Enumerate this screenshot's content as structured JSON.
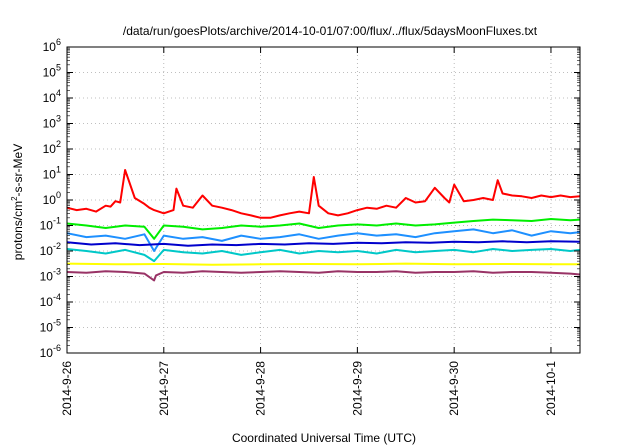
{
  "chart_data": {
    "type": "line",
    "title": "/data/run/goesPlots/archive/2014-10-01/07:00/flux/../flux/5daysMoonFluxes.txt",
    "xlabel": "Coordinated Universal Time (UTC)",
    "ylabel": {
      "prefix": "protons/cm",
      "sup": "2",
      "suffix": "-s-sr-MeV"
    },
    "y_scale": "log",
    "ylim_exponents": [
      -6,
      6
    ],
    "y_ticks": [
      {
        "base": "10",
        "exp": "-6"
      },
      {
        "base": "10",
        "exp": "-5"
      },
      {
        "base": "10",
        "exp": "-4"
      },
      {
        "base": "10",
        "exp": "-3"
      },
      {
        "base": "10",
        "exp": "-2"
      },
      {
        "base": "10",
        "exp": "-1"
      },
      {
        "base": "10",
        "exp": "0"
      },
      {
        "base": "10",
        "exp": "1"
      },
      {
        "base": "10",
        "exp": "2"
      },
      {
        "base": "10",
        "exp": "3"
      },
      {
        "base": "10",
        "exp": "4"
      },
      {
        "base": "10",
        "exp": "5"
      },
      {
        "base": "10",
        "exp": "6"
      }
    ],
    "x_ticks": [
      "2014-9-26",
      "2014-9-27",
      "2014-9-28",
      "2014-9-29",
      "2014-9-30",
      "2014-10-1"
    ],
    "xlim_days": [
      0,
      5.3
    ],
    "grid": true,
    "legend": "none",
    "series": [
      {
        "color": "#ff0000",
        "x": [
          0,
          0.1,
          0.2,
          0.3,
          0.4,
          0.45,
          0.5,
          0.55,
          0.6,
          0.7,
          0.8,
          0.85,
          0.9,
          1.0,
          1.1,
          1.13,
          1.2,
          1.3,
          1.4,
          1.5,
          1.6,
          1.7,
          1.8,
          1.9,
          2.0,
          2.1,
          2.2,
          2.3,
          2.4,
          2.5,
          2.55,
          2.6,
          2.7,
          2.8,
          2.9,
          3.0,
          3.1,
          3.2,
          3.3,
          3.4,
          3.5,
          3.6,
          3.7,
          3.8,
          3.9,
          3.95,
          4.0,
          4.1,
          4.2,
          4.3,
          4.4,
          4.45,
          4.5,
          4.6,
          4.7,
          4.8,
          4.9,
          5.0,
          5.1,
          5.2,
          5.3
        ],
        "y": [
          0.5,
          0.4,
          0.45,
          0.35,
          0.6,
          0.55,
          0.9,
          0.8,
          15,
          1.2,
          0.7,
          0.5,
          0.4,
          0.3,
          0.4,
          2.8,
          0.6,
          0.5,
          1.5,
          0.6,
          0.5,
          0.4,
          0.3,
          0.25,
          0.2,
          0.2,
          0.25,
          0.3,
          0.35,
          0.3,
          8,
          0.6,
          0.3,
          0.25,
          0.3,
          0.4,
          0.5,
          0.45,
          0.6,
          0.5,
          1.2,
          0.8,
          0.9,
          3,
          1.2,
          0.8,
          4,
          0.9,
          1.0,
          1.2,
          1.0,
          6,
          1.8,
          1.5,
          1.4,
          1.2,
          1.5,
          1.3,
          1.5,
          1.3,
          1.4
        ]
      },
      {
        "color": "#00ee00",
        "x": [
          0,
          0.2,
          0.4,
          0.6,
          0.8,
          0.9,
          1.0,
          1.2,
          1.4,
          1.6,
          1.8,
          2.0,
          2.2,
          2.4,
          2.6,
          2.8,
          3.0,
          3.2,
          3.4,
          3.6,
          3.8,
          4.0,
          4.2,
          4.4,
          4.6,
          4.8,
          5.0,
          5.2,
          5.3
        ],
        "y": [
          0.12,
          0.1,
          0.08,
          0.1,
          0.09,
          0.03,
          0.1,
          0.09,
          0.07,
          0.08,
          0.1,
          0.09,
          0.1,
          0.12,
          0.08,
          0.1,
          0.11,
          0.1,
          0.12,
          0.1,
          0.11,
          0.13,
          0.15,
          0.17,
          0.16,
          0.15,
          0.18,
          0.16,
          0.17
        ]
      },
      {
        "color": "#1e90ff",
        "x": [
          0,
          0.2,
          0.4,
          0.6,
          0.8,
          0.9,
          1.0,
          1.2,
          1.4,
          1.6,
          1.8,
          2.0,
          2.2,
          2.4,
          2.6,
          2.8,
          3.0,
          3.2,
          3.4,
          3.6,
          3.8,
          4.0,
          4.2,
          4.4,
          4.6,
          4.8,
          5.0,
          5.2,
          5.3
        ],
        "y": [
          0.05,
          0.035,
          0.04,
          0.03,
          0.045,
          0.01,
          0.04,
          0.03,
          0.035,
          0.025,
          0.04,
          0.03,
          0.035,
          0.045,
          0.03,
          0.04,
          0.05,
          0.04,
          0.045,
          0.035,
          0.05,
          0.06,
          0.07,
          0.05,
          0.065,
          0.04,
          0.06,
          0.05,
          0.055
        ]
      },
      {
        "color": "#0000cc",
        "x": [
          0,
          0.25,
          0.5,
          0.75,
          1.0,
          1.25,
          1.5,
          1.75,
          2.0,
          2.25,
          2.5,
          2.75,
          3.0,
          3.25,
          3.5,
          3.75,
          4.0,
          4.25,
          4.5,
          4.75,
          5.0,
          5.3
        ],
        "y": [
          0.022,
          0.018,
          0.02,
          0.017,
          0.019,
          0.016,
          0.018,
          0.017,
          0.019,
          0.018,
          0.02,
          0.019,
          0.021,
          0.02,
          0.022,
          0.021,
          0.023,
          0.022,
          0.024,
          0.022,
          0.024,
          0.023
        ]
      },
      {
        "color": "#00c8c8",
        "x": [
          0,
          0.2,
          0.4,
          0.6,
          0.8,
          0.9,
          1.0,
          1.2,
          1.4,
          1.6,
          1.8,
          2.0,
          2.2,
          2.4,
          2.6,
          2.8,
          3.0,
          3.2,
          3.4,
          3.6,
          3.8,
          4.0,
          4.2,
          4.4,
          4.6,
          4.8,
          5.0,
          5.2,
          5.3
        ],
        "y": [
          0.012,
          0.01,
          0.008,
          0.011,
          0.007,
          0.004,
          0.011,
          0.009,
          0.008,
          0.01,
          0.007,
          0.009,
          0.011,
          0.008,
          0.01,
          0.009,
          0.01,
          0.008,
          0.011,
          0.009,
          0.01,
          0.011,
          0.009,
          0.012,
          0.01,
          0.011,
          0.012,
          0.01,
          0.011
        ]
      },
      {
        "color": "#ffff00",
        "x": [
          0,
          0.5,
          1.0,
          1.5,
          2.0,
          2.5,
          3.0,
          3.5,
          4.0,
          4.5,
          5.0,
          5.3
        ],
        "y": [
          0.0032,
          0.003,
          0.0031,
          0.0029,
          0.003,
          0.0031,
          0.003,
          0.0032,
          0.003,
          0.0031,
          0.003,
          0.003
        ]
      },
      {
        "color": "#993366",
        "x": [
          0,
          0.2,
          0.4,
          0.6,
          0.8,
          0.9,
          0.92,
          1.0,
          1.2,
          1.4,
          1.6,
          1.8,
          2.0,
          2.2,
          2.4,
          2.6,
          2.8,
          3.0,
          3.2,
          3.4,
          3.6,
          3.8,
          4.0,
          4.2,
          4.4,
          4.6,
          4.8,
          5.0,
          5.2,
          5.3
        ],
        "y": [
          0.0015,
          0.0014,
          0.0016,
          0.0015,
          0.0013,
          0.0007,
          0.0011,
          0.0015,
          0.0014,
          0.0016,
          0.0015,
          0.0014,
          0.0015,
          0.0016,
          0.0015,
          0.0014,
          0.0016,
          0.0015,
          0.0015,
          0.0016,
          0.0014,
          0.0015,
          0.0015,
          0.0016,
          0.0014,
          0.0015,
          0.0015,
          0.0014,
          0.0013,
          0.0012
        ]
      }
    ]
  }
}
